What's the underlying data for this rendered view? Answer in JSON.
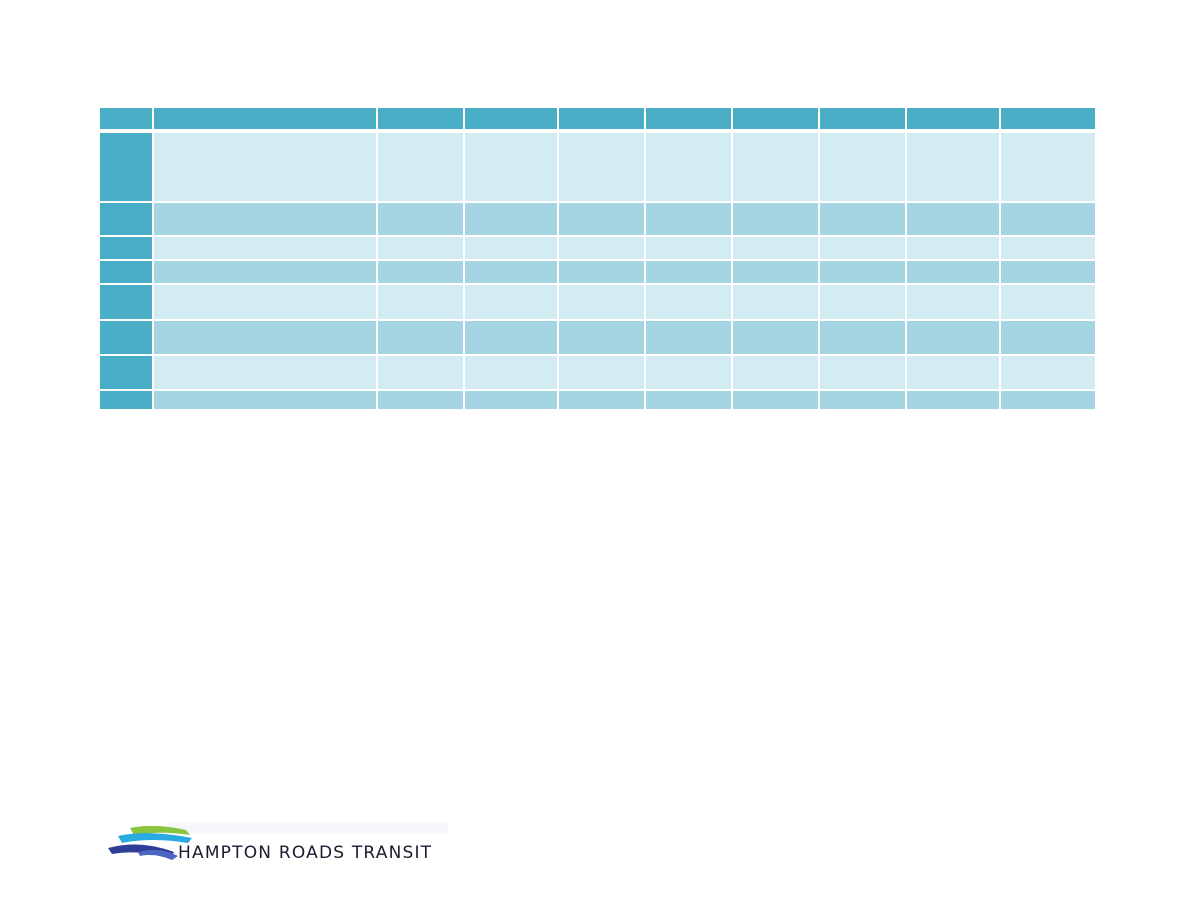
{
  "table": {
    "columns": [
      "",
      "",
      "",
      "",
      "",
      "",
      "",
      "",
      "",
      ""
    ],
    "rows": [
      {
        "tone": "light",
        "cells": [
          "",
          "",
          "",
          "",
          "",
          "",
          "",
          "",
          "",
          ""
        ]
      },
      {
        "tone": "dark",
        "cells": [
          "",
          "",
          "",
          "",
          "",
          "",
          "",
          "",
          "",
          ""
        ]
      },
      {
        "tone": "light",
        "cells": [
          "",
          "",
          "",
          "",
          "",
          "",
          "",
          "",
          "",
          ""
        ]
      },
      {
        "tone": "dark",
        "cells": [
          "",
          "",
          "",
          "",
          "",
          "",
          "",
          "",
          "",
          ""
        ]
      },
      {
        "tone": "light",
        "cells": [
          "",
          "",
          "",
          "",
          "",
          "",
          "",
          "",
          "",
          ""
        ]
      },
      {
        "tone": "dark",
        "cells": [
          "",
          "",
          "",
          "",
          "",
          "",
          "",
          "",
          "",
          ""
        ]
      },
      {
        "tone": "light",
        "cells": [
          "",
          "",
          "",
          "",
          "",
          "",
          "",
          "",
          "",
          ""
        ]
      },
      {
        "tone": "dark",
        "cells": [
          "",
          "",
          "",
          "",
          "",
          "",
          "",
          "",
          "",
          ""
        ]
      }
    ]
  },
  "footer": {
    "logo_text": "HAMPTON ROADS TRANSIT",
    "logo_icon": "hrt-waves-logo-icon"
  },
  "colors": {
    "header_blue": "#4aaec7",
    "light_row": "#d3ebf3",
    "dark_row": "#a5d5e3",
    "logo_green": "#8bc53f",
    "logo_cyan": "#29abe2",
    "logo_blue": "#2e3d98"
  }
}
